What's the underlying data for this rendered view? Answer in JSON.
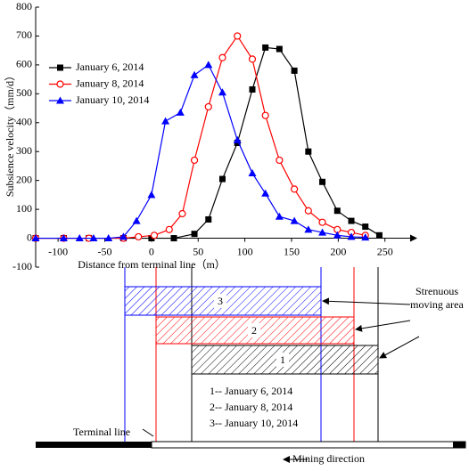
{
  "chart_data": {
    "type": "line",
    "x_label": "Distance from terminal line（m）",
    "y_label": "Subsience velocity（mm/d）",
    "xlim": [
      -124,
      277
    ],
    "ylim": [
      -100,
      800
    ],
    "xticks": [
      -100,
      -50,
      0,
      50,
      100,
      150,
      200,
      250
    ],
    "yticks": [
      -100,
      0,
      100,
      200,
      300,
      400,
      500,
      600,
      700,
      800
    ],
    "legend": "upper left",
    "series": [
      {
        "name": "January 6, 2014",
        "color": "#000000",
        "marker": "square",
        "x": [
          -124,
          -94,
          -67,
          -30,
          0,
          24,
          46,
          61,
          76,
          92,
          108,
          122,
          137,
          153,
          168,
          183,
          199,
          214,
          229,
          244
        ],
        "values": [
          0,
          0,
          0,
          0,
          0,
          0,
          15,
          65,
          205,
          330,
          515,
          660,
          655,
          580,
          300,
          195,
          95,
          60,
          40,
          10
        ]
      },
      {
        "name": "January 8, 2014",
        "color": "#ff0000",
        "marker": "circle",
        "x": [
          -124,
          -94,
          -67,
          -30,
          -14,
          3,
          19,
          33,
          46,
          61,
          76,
          92,
          108,
          122,
          137,
          153,
          168,
          183,
          199,
          214,
          229
        ],
        "values": [
          0,
          0,
          0,
          0,
          5,
          10,
          30,
          85,
          270,
          455,
          625,
          700,
          620,
          425,
          270,
          170,
          95,
          55,
          30,
          20,
          10
        ]
      },
      {
        "name": "January 10, 2014",
        "color": "#0000ff",
        "marker": "triangle",
        "x": [
          -124,
          -94,
          -77,
          -62,
          -46,
          -30,
          -16,
          0,
          15,
          31,
          46,
          61,
          76,
          92,
          108,
          122,
          137,
          153,
          168,
          183,
          199,
          214,
          229
        ],
        "values": [
          0,
          0,
          0,
          0,
          0,
          5,
          60,
          150,
          405,
          435,
          565,
          600,
          505,
          340,
          225,
          155,
          75,
          60,
          30,
          20,
          10,
          5,
          3
        ]
      }
    ]
  },
  "diagram": {
    "areas": [
      "1",
      "2",
      "3"
    ],
    "annotation": "Strenuous moving area",
    "legend": [
      "1-- January 6, 2014",
      "2-- January 8, 2014",
      "3-- January 10, 2014"
    ],
    "terminal_line": "Terminal line",
    "mining_direction": "Mining direction"
  }
}
